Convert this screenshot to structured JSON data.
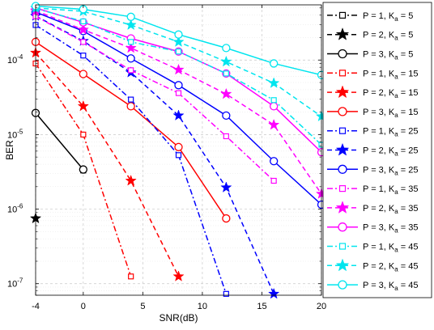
{
  "chart_data": {
    "type": "line",
    "title": "",
    "xlabel": "SNR(dB)",
    "ylabel": "BER",
    "x_ticks": [
      "-4",
      "0",
      "5",
      "10",
      "15",
      "20"
    ],
    "y_scale": "log",
    "xlim": [
      -4,
      20
    ],
    "ylim": [
      7e-08,
      0.00055
    ],
    "y_tick_values": [
      1e-07,
      1e-06,
      1e-05,
      0.0001
    ],
    "y_tick_base": "10",
    "y_tick_exponents": [
      "-7",
      "-6",
      "-5",
      "-4"
    ],
    "grid": "on",
    "legend_position": "right",
    "x": [
      -4,
      0,
      4,
      8,
      12,
      16,
      20
    ],
    "series": [
      {
        "label_prefix": "P = 1, K",
        "label_sub": "a",
        "label_suffix": " = 5",
        "color": "#000000",
        "line": "dashdot",
        "marker": "square",
        "values": [
          null,
          3.3e-06,
          null,
          null,
          null,
          null,
          null
        ]
      },
      {
        "label_prefix": "P = 2, K",
        "label_sub": "a",
        "label_suffix": " = 5",
        "color": "#000000",
        "line": "dashed",
        "marker": "star",
        "values": [
          7.5e-07,
          null,
          null,
          null,
          null,
          null,
          null
        ]
      },
      {
        "label_prefix": "P = 3, K",
        "label_sub": "a",
        "label_suffix": " = 5",
        "color": "#000000",
        "line": "solid",
        "marker": "circle",
        "values": [
          1.95e-05,
          3.4e-06,
          null,
          null,
          null,
          null,
          null
        ]
      },
      {
        "label_prefix": "P = 1, K",
        "label_sub": "a",
        "label_suffix": " = 15",
        "color": "#ff0000",
        "line": "dashdot",
        "marker": "square",
        "values": [
          9e-05,
          1e-05,
          1.25e-07,
          null,
          null,
          null,
          null
        ]
      },
      {
        "label_prefix": "P = 2, K",
        "label_sub": "a",
        "label_suffix": " = 15",
        "color": "#ff0000",
        "line": "dashed",
        "marker": "star",
        "values": [
          0.000125,
          2.4e-05,
          2.4e-06,
          1.25e-07,
          null,
          null,
          null
        ]
      },
      {
        "label_prefix": "P = 3, K",
        "label_sub": "a",
        "label_suffix": " = 15",
        "color": "#ff0000",
        "line": "solid",
        "marker": "circle",
        "values": [
          0.000175,
          6.5e-05,
          2.4e-05,
          6.8e-06,
          7.5e-07,
          null,
          null
        ]
      },
      {
        "label_prefix": "P = 1, K",
        "label_sub": "a",
        "label_suffix": " = 25",
        "color": "#0000ff",
        "line": "dashdot",
        "marker": "square",
        "values": [
          0.000295,
          0.000115,
          2.95e-05,
          5.3e-06,
          7.3e-08,
          null,
          null
        ]
      },
      {
        "label_prefix": "P = 2, K",
        "label_sub": "a",
        "label_suffix": " = 25",
        "color": "#0000ff",
        "line": "dashed",
        "marker": "star",
        "values": [
          0.00039,
          0.00018,
          6.8e-05,
          1.8e-05,
          1.95e-06,
          7.3e-08,
          null
        ]
      },
      {
        "label_prefix": "P = 3, K",
        "label_sub": "a",
        "label_suffix": " = 25",
        "color": "#0000ff",
        "line": "solid",
        "marker": "circle",
        "values": [
          0.00044,
          0.000245,
          0.000105,
          4.6e-05,
          1.8e-05,
          4.4e-06,
          1.15e-06
        ]
      },
      {
        "label_prefix": "P = 1, K",
        "label_sub": "a",
        "label_suffix": " = 35",
        "color": "#ff00ff",
        "line": "dashdot",
        "marker": "square",
        "values": [
          0.000385,
          0.000175,
          7.3e-05,
          3.6e-05,
          9.5e-06,
          2.4e-06,
          null
        ]
      },
      {
        "label_prefix": "P = 2, K",
        "label_sub": "a",
        "label_suffix": " = 35",
        "color": "#ff00ff",
        "line": "dashed",
        "marker": "star",
        "values": [
          0.00046,
          0.000255,
          0.000145,
          7.4e-05,
          3.5e-05,
          1.35e-05,
          1.6e-06
        ]
      },
      {
        "label_prefix": "P = 3, K",
        "label_sub": "a",
        "label_suffix": " = 35",
        "color": "#ff00ff",
        "line": "solid",
        "marker": "circle",
        "values": [
          0.0005,
          0.00032,
          0.000195,
          0.00013,
          6.6e-05,
          2.4e-05,
          5.8e-06
        ]
      },
      {
        "label_prefix": "P = 1, K",
        "label_sub": "a",
        "label_suffix": " = 45",
        "color": "#00e5ee",
        "line": "dashdot",
        "marker": "square",
        "values": [
          0.00049,
          0.00033,
          0.000175,
          0.00013,
          6.6e-05,
          2.9e-05,
          7.3e-06
        ]
      },
      {
        "label_prefix": "P = 2, K",
        "label_sub": "a",
        "label_suffix": " = 45",
        "color": "#00e5ee",
        "line": "dashed",
        "marker": "star",
        "values": [
          0.0005,
          0.00045,
          0.000295,
          0.000175,
          9.5e-05,
          4.9e-05,
          1.75e-05
        ]
      },
      {
        "label_prefix": "P = 3, K",
        "label_sub": "a",
        "label_suffix": " = 45",
        "color": "#00e5ee",
        "line": "solid",
        "marker": "circle",
        "values": [
          0.00053,
          0.00048,
          0.00038,
          0.00022,
          0.000145,
          9e-05,
          6.3e-05
        ]
      }
    ]
  }
}
